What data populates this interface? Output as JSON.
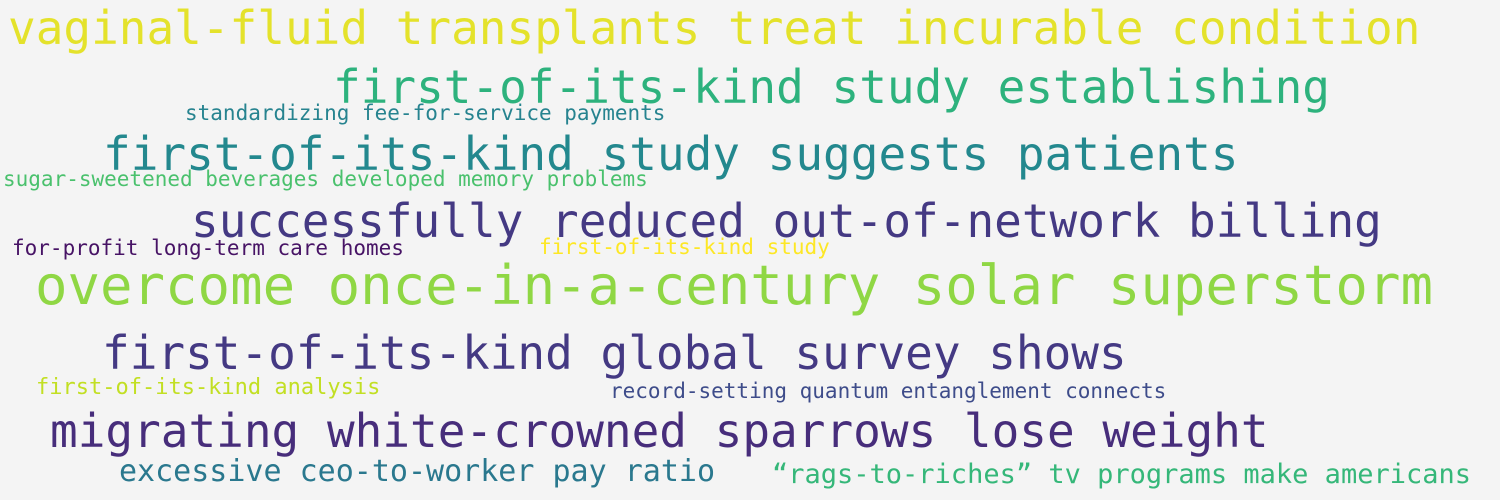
{
  "cloud": {
    "phrases": [
      {
        "text": "vaginal-fluid transplants treat incurable condition",
        "color": "#e4e22b"
      },
      {
        "text": "first-of-its-kind study establishing",
        "color": "#2db27d"
      },
      {
        "text": "standardizing fee-for-service payments",
        "color": "#26838f"
      },
      {
        "text": "first-of-its-kind study suggests patients",
        "color": "#23888e"
      },
      {
        "text": "sugar-sweetened beverages developed memory problems",
        "color": "#4ac16d"
      },
      {
        "text": "successfully reduced out-of-network billing",
        "color": "#443983"
      },
      {
        "text": "for-profit long-term care homes",
        "color": "#471365"
      },
      {
        "text": "first-of-its-kind study",
        "color": "#fde725"
      },
      {
        "text": "overcome once-in-a-century solar superstorm",
        "color": "#8fd744"
      },
      {
        "text": "first-of-its-kind global survey shows",
        "color": "#443983"
      },
      {
        "text": "first-of-its-kind analysis",
        "color": "#c2df23"
      },
      {
        "text": "record-setting quantum entanglement connects",
        "color": "#3e4c8a"
      },
      {
        "text": "migrating white-crowned sparrows lose weight",
        "color": "#472d7b"
      },
      {
        "text": "excessive ceo-to-worker pay ratio",
        "color": "#2a788e"
      },
      {
        "text": "“rags-to-riches” tv programs make americans",
        "color": "#35b779"
      }
    ]
  }
}
